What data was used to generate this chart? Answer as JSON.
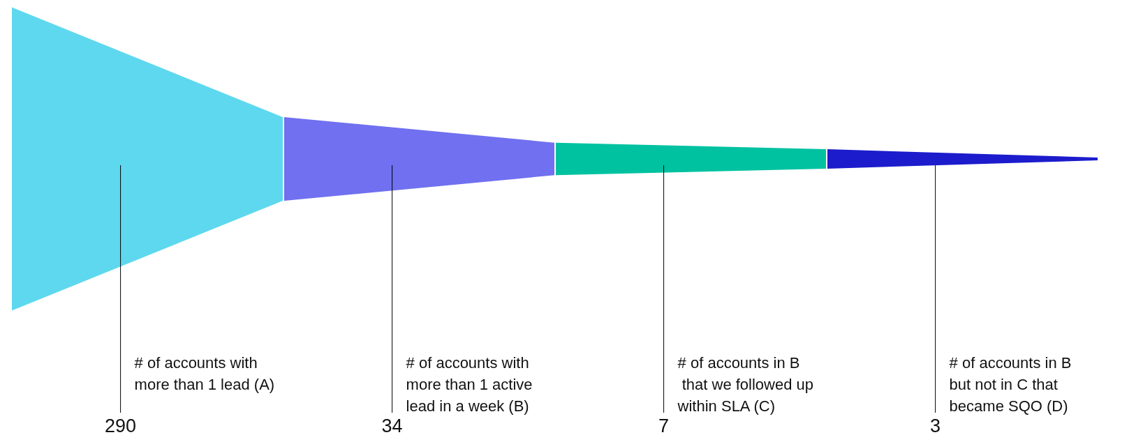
{
  "chart_data": {
    "type": "other",
    "categories": [
      "# of accounts with\nmore than 1 lead (A)",
      "# of accounts with\nmore than 1 active\nlead in a week (B)",
      "# of accounts in B\n that we followed up\nwithin SLA (C)",
      "# of accounts in B\nbut not in C that\nbecame SQO (D)"
    ],
    "values": [
      290,
      34,
      7,
      3
    ],
    "colors": [
      "#5ed8ee",
      "#7070f0",
      "#00c2a0",
      "#1c1ccc"
    ],
    "data_labels": true
  }
}
